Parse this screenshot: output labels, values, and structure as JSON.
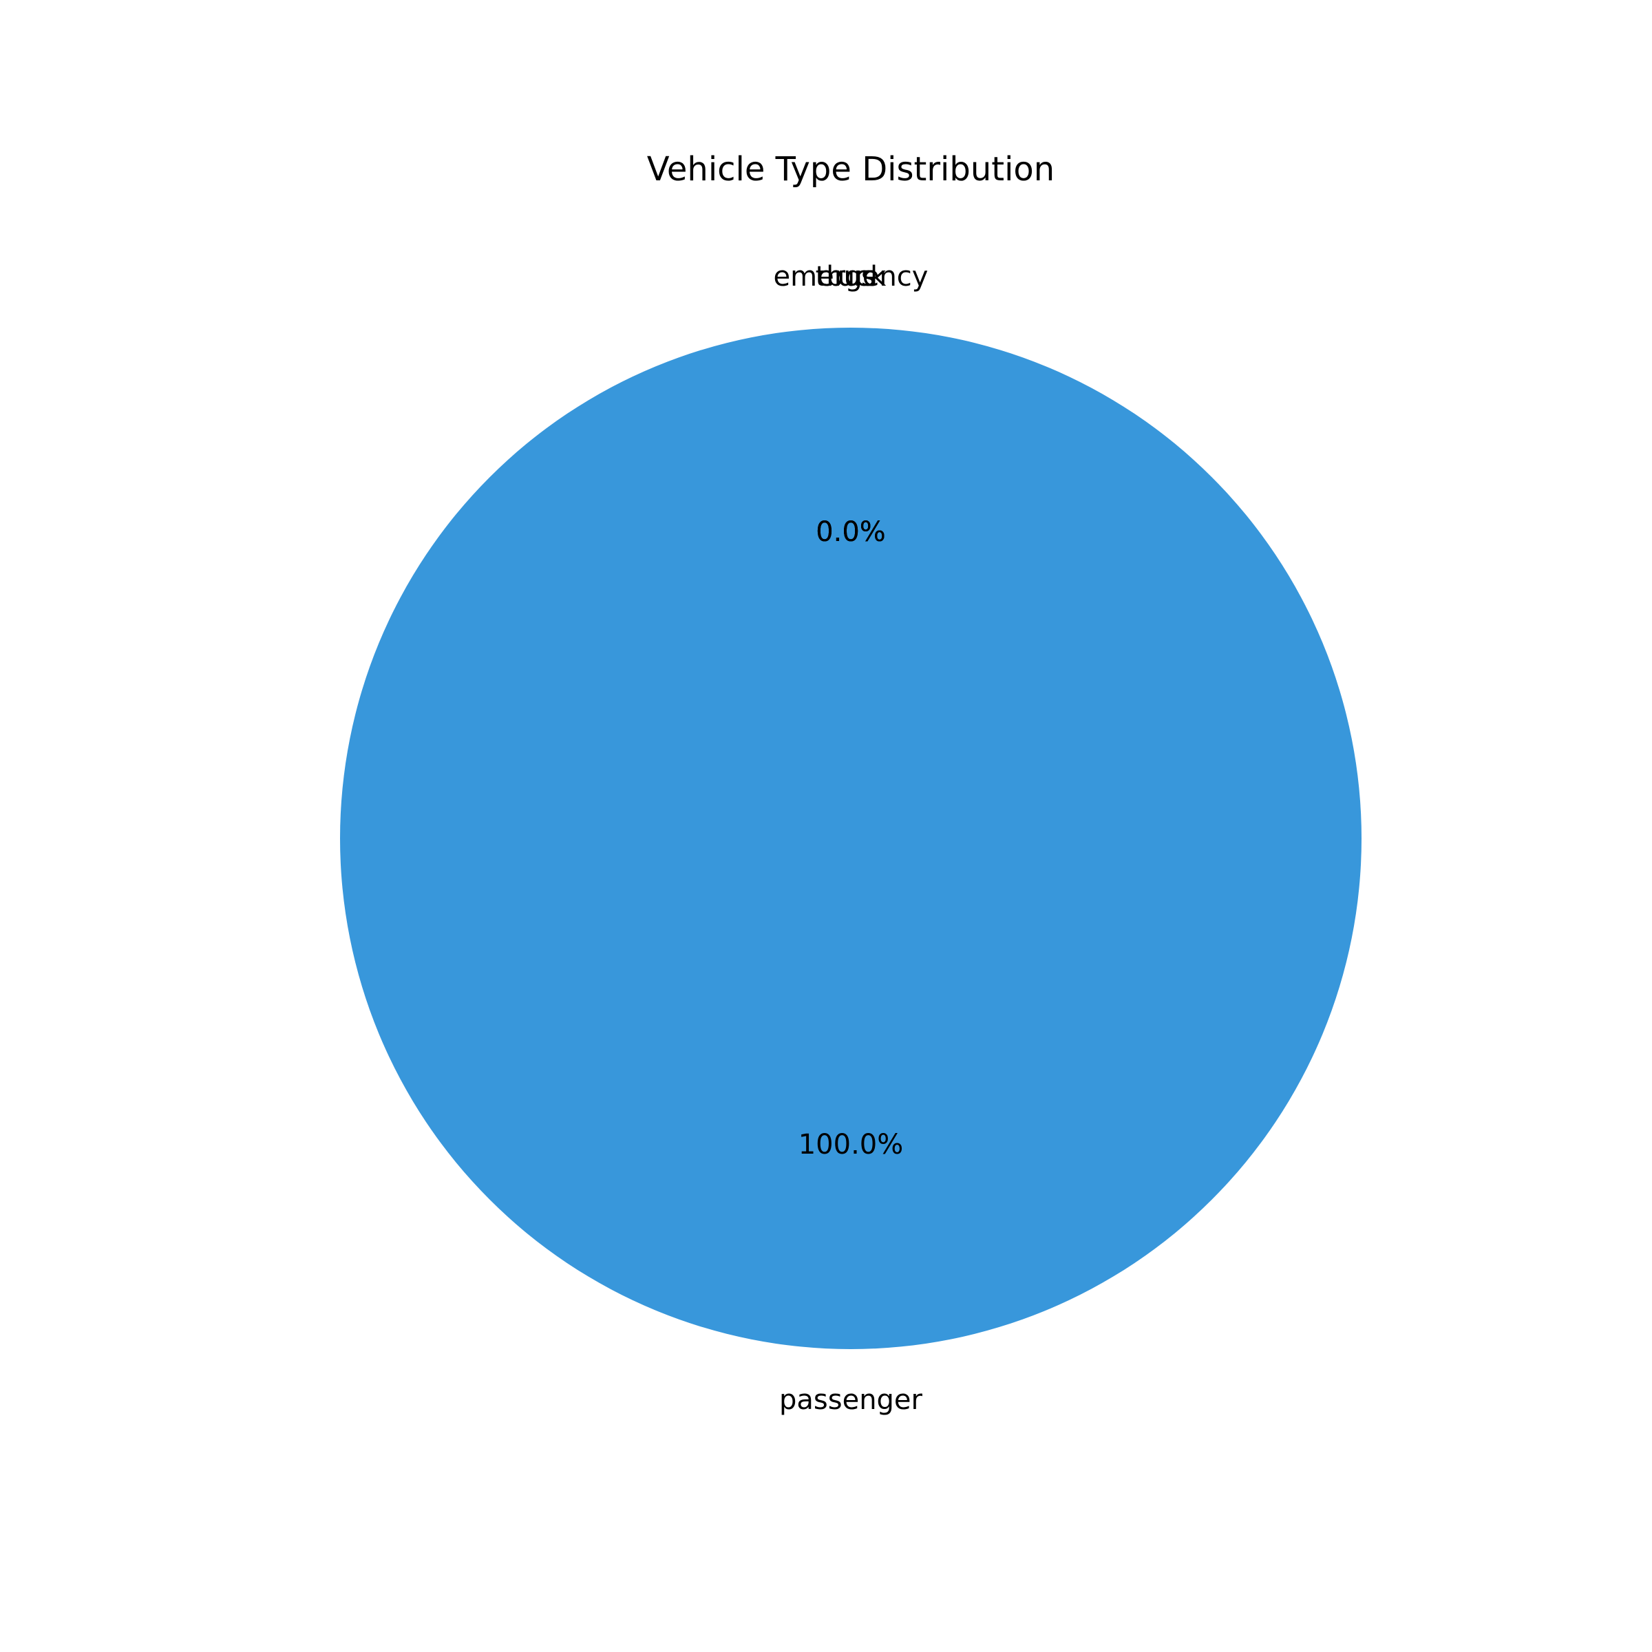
{
  "chart_data": {
    "type": "pie",
    "title": "Vehicle Type Distribution",
    "slices": [
      {
        "label": "passenger",
        "value": 100.0,
        "pct_label": "100.0%",
        "color": "#3897db"
      },
      {
        "label": "bus",
        "value": 0.0,
        "pct_label": "0.0%",
        "color": "#3897db"
      },
      {
        "label": "truck",
        "value": 0.0,
        "pct_label": "0.0%",
        "color": "#3897db"
      },
      {
        "label": "emergency",
        "value": 0.0,
        "pct_label": "0.0%",
        "color": "#3897db"
      }
    ],
    "start_angle_deg": 90,
    "direction": "counterclockwise",
    "legend": "none",
    "grid": false
  }
}
